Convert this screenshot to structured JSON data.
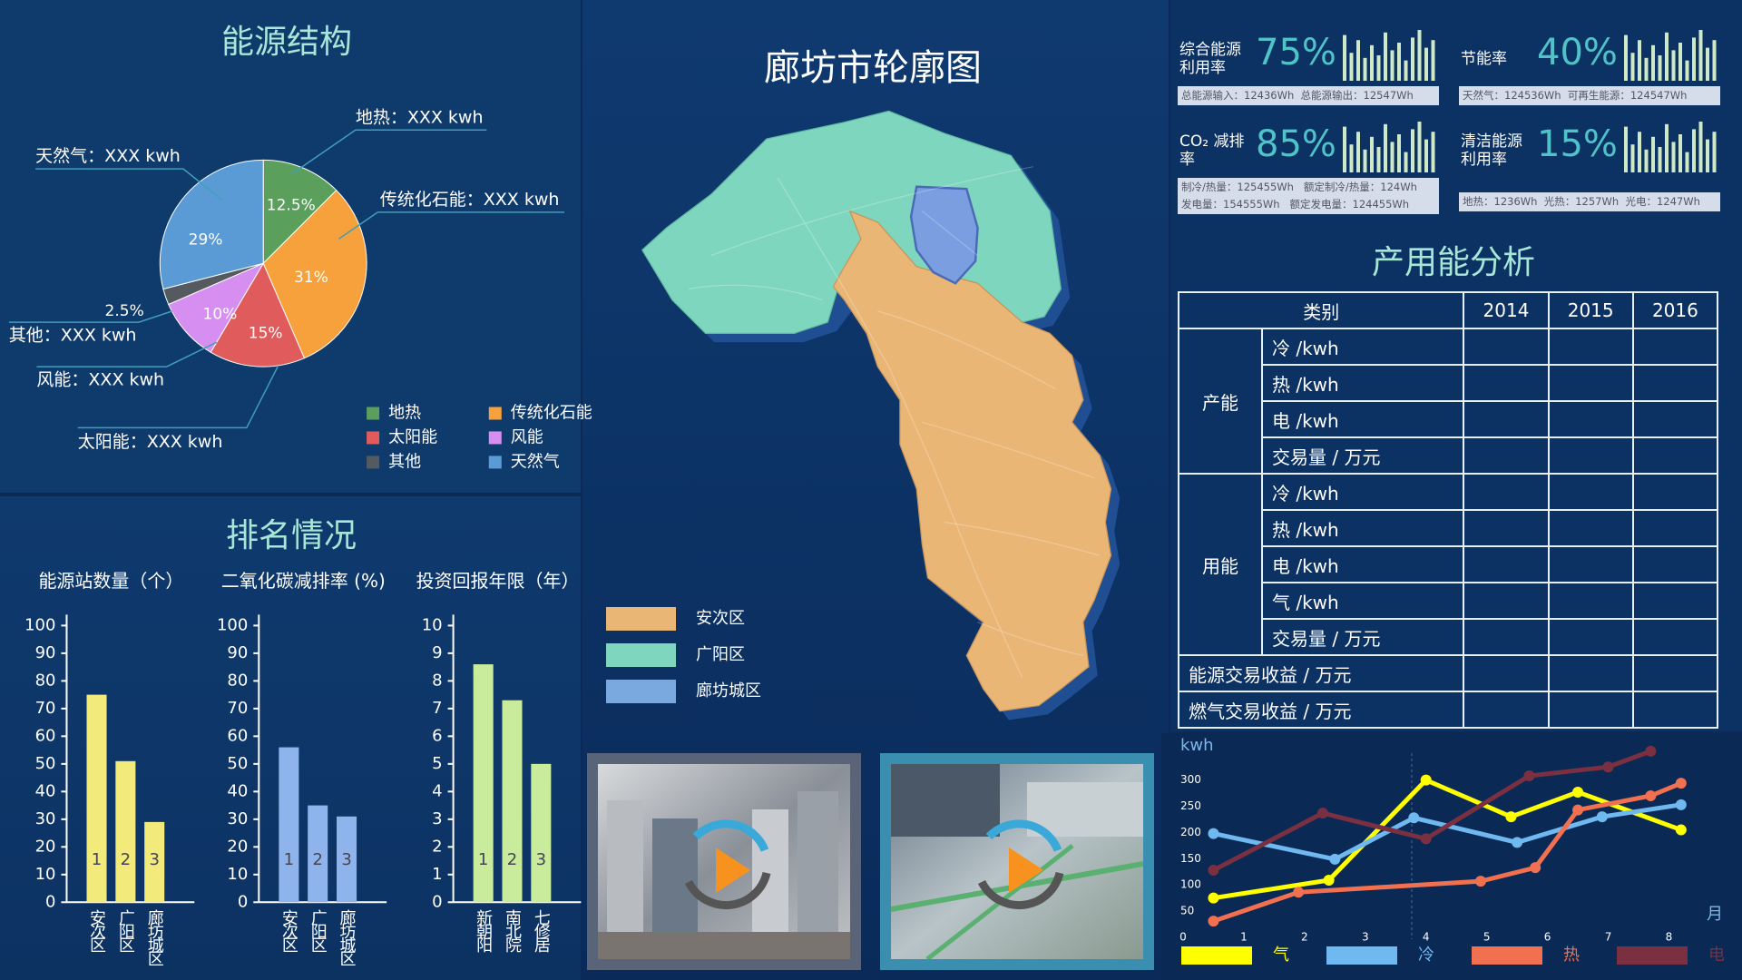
{
  "chart_data": [
    {
      "type": "pie",
      "title": "能源结构",
      "categories": [
        "地热",
        "传统化石能",
        "太阳能",
        "风能",
        "其他",
        "天然气"
      ],
      "values": [
        12.5,
        31,
        15,
        10,
        2.5,
        29
      ],
      "value_labels": [
        "12.5%",
        "31%",
        "15%",
        "10%",
        "2.5%",
        "29%"
      ],
      "colors": [
        "#5a9f5c",
        "#f7a13c",
        "#e05c5c",
        "#d68ef0",
        "#555a60",
        "#5b9bd5"
      ],
      "callouts": [
        "地热：XXX kwh",
        "传统化石能：XXX kwh",
        "太阳能：XXX kwh",
        "风能：XXX kwh",
        "其他：XXX kwh",
        "天然气：XXX kwh"
      ]
    },
    {
      "type": "bar",
      "title": "能源站数量（个）",
      "categories": [
        "安次区",
        "广阳区",
        "廊坊城区"
      ],
      "values": [
        75,
        51,
        29
      ],
      "ranks": [
        1,
        2,
        3
      ],
      "color": "#f2ea7a",
      "ylim": [
        0,
        100
      ],
      "yticks": [
        0,
        10,
        20,
        30,
        40,
        50,
        60,
        70,
        80,
        90,
        100
      ]
    },
    {
      "type": "bar",
      "title": "二氧化碳减排率 (%)",
      "categories": [
        "安次区",
        "广阳区",
        "廊坊城区"
      ],
      "values": [
        56,
        35,
        31
      ],
      "ranks": [
        1,
        2,
        3
      ],
      "color": "#8fb4ec",
      "ylim": [
        0,
        100
      ],
      "yticks": [
        0,
        10,
        20,
        30,
        40,
        50,
        60,
        70,
        80,
        90,
        100
      ]
    },
    {
      "type": "bar",
      "title": "投资回报年限（年）",
      "categories": [
        "新朝阳",
        "南北院",
        "七修居"
      ],
      "values": [
        8.6,
        7.3,
        5.0
      ],
      "ranks": [
        1,
        2,
        3
      ],
      "color": "#c8ec9c",
      "ylim": [
        0,
        10
      ],
      "yticks": [
        0,
        1,
        2,
        3,
        4,
        5,
        6,
        7,
        8,
        9,
        10
      ]
    },
    {
      "type": "line",
      "y_label": "kwh",
      "x_label": "月",
      "xlim": [
        0,
        8.8
      ],
      "xticks": [
        0,
        1,
        2,
        3,
        4,
        5,
        6,
        7,
        8
      ],
      "ylim": [
        0,
        360
      ],
      "yticks": [
        50,
        100,
        150,
        200,
        250,
        300
      ],
      "series": [
        {
          "name": "气",
          "color": "#ffff00",
          "x": [
            0.5,
            2.4,
            4.0,
            5.4,
            6.5,
            8.2
          ],
          "values": [
            75,
            109,
            300,
            230,
            277,
            205
          ]
        },
        {
          "name": "冷",
          "color": "#6fb8f0",
          "x": [
            0.5,
            2.5,
            3.8,
            5.5,
            6.9,
            8.2
          ],
          "values": [
            198,
            149,
            228,
            181,
            230,
            253
          ]
        },
        {
          "name": "热",
          "color": "#f07050",
          "x": [
            0.5,
            1.9,
            4.9,
            5.8,
            6.5,
            7.7,
            8.2
          ],
          "values": [
            31,
            86,
            107,
            133,
            243,
            270,
            294
          ]
        },
        {
          "name": "电",
          "color": "#7a3040",
          "x": [
            0.5,
            2.3,
            4.0,
            5.7,
            7.0,
            7.7
          ],
          "values": [
            128,
            237,
            188,
            308,
            325,
            355
          ]
        }
      ]
    }
  ],
  "ranking": {
    "title": "排名情况"
  },
  "map": {
    "title": "廊坊市轮廓图",
    "legend": [
      {
        "name": "安次区",
        "color": "#e9b676"
      },
      {
        "name": "广阳区",
        "color": "#7fd6bf"
      },
      {
        "name": "廊坊城区",
        "color": "#7aa9e0"
      }
    ]
  },
  "kpis": [
    {
      "label": [
        "综合能源",
        "利用率"
      ],
      "value": "75%",
      "details": [
        "总能源输入：12436Wh  总能源输出：12547Wh"
      ]
    },
    {
      "label": [
        "节能率"
      ],
      "value": "40%",
      "details": [
        "天然气：124536Wh  可再生能源：124547Wh"
      ]
    },
    {
      "label": [
        "CO₂ 减排",
        "率"
      ],
      "value": "85%",
      "details": [
        "制冷/热量：125455Wh   额定制冷/热量：124Wh",
        "发电量：154555Wh   额定发电量：124455Wh"
      ]
    },
    {
      "label": [
        "清洁能源",
        "利用率"
      ],
      "value": "15%",
      "details": [
        "地热：1236Wh  光热：1257Wh  光电：1247Wh"
      ]
    }
  ],
  "table": {
    "title": "产用能分析",
    "header": [
      "类别",
      "2014",
      "2015",
      "2016"
    ],
    "groups": [
      {
        "name": "产能",
        "rows": [
          "冷 /kwh",
          "热 /kwh",
          "电 /kwh",
          "交易量 / 万元"
        ]
      },
      {
        "name": "用能",
        "rows": [
          "冷 /kwh",
          "热 /kwh",
          "电 /kwh",
          "气 /kwh",
          "交易量 / 万元"
        ]
      }
    ],
    "extra_rows": [
      "能源交易收益 / 万元",
      "燃气交易收益 / 万元"
    ]
  }
}
